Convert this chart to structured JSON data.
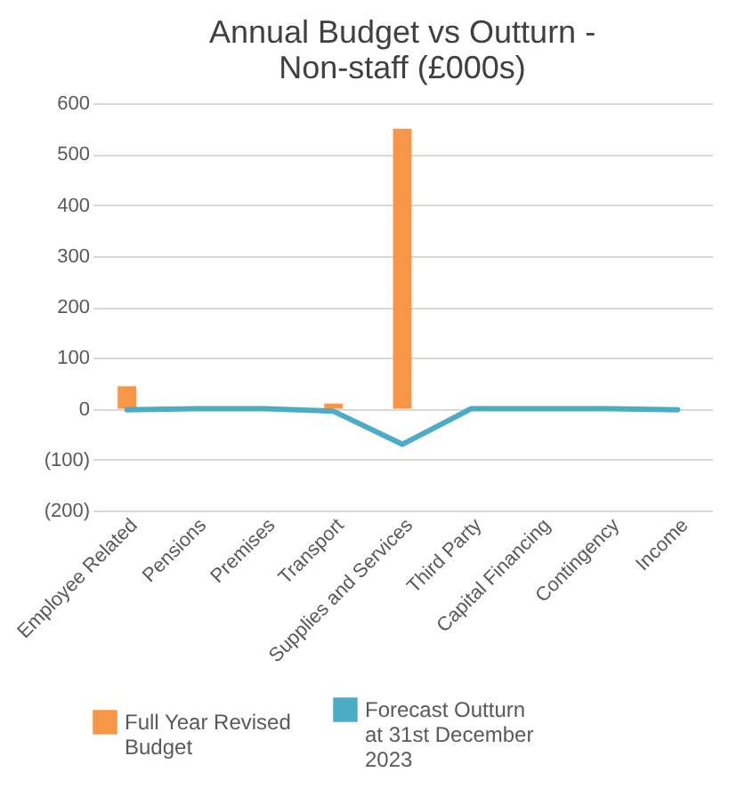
{
  "chart_data": {
    "type": "bar",
    "title": "Annual Budget vs Outturn - Non-staff (£000s)",
    "categories": [
      "Employee Related",
      "Pensions",
      "Premises",
      "Transport",
      "Supplies and Services",
      "Third Party",
      "Capital Financing",
      "Contingency",
      "Income"
    ],
    "series": [
      {
        "name": "Full Year Revised Budget",
        "color": "#f79646",
        "values": [
          44,
          0,
          0,
          10,
          550,
          0,
          0,
          0,
          0
        ]
      },
      {
        "name": "Forecast Outturn at 31st December 2023",
        "type": "line",
        "color": "#4bacc6",
        "values": [
          -2,
          0,
          0,
          -5,
          -70,
          0,
          0,
          0,
          -2
        ]
      }
    ],
    "ylim": [
      -200,
      600
    ],
    "yticks": [
      {
        "value": -200,
        "label": "(200)"
      },
      {
        "value": -100,
        "label": "(100)"
      },
      0,
      100,
      200,
      300,
      400,
      500,
      600
    ],
    "grid": "y",
    "legend": "bottom",
    "marker": "none"
  }
}
